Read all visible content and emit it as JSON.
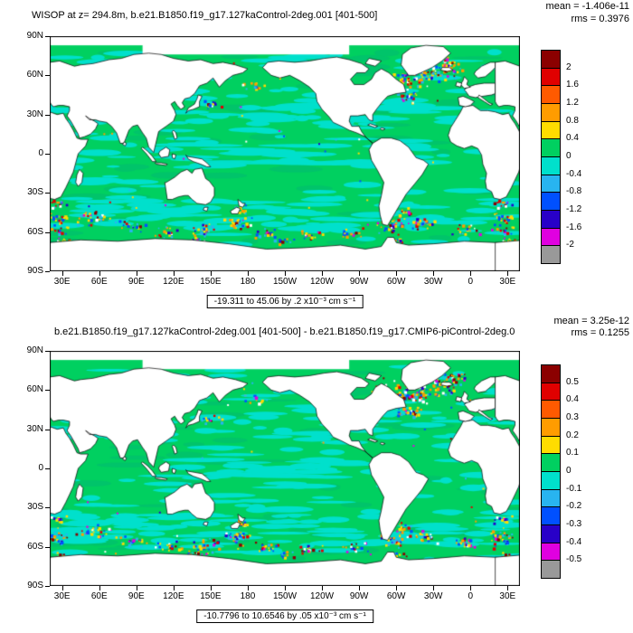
{
  "panels": [
    {
      "title": "WISOP at z= 294.8m, b.e21.B1850.f19_g17.127kaControl-2deg.001 [401-500]",
      "mean_label": "mean = -1.406e-11",
      "rms_label": "rms = 0.3976",
      "caption": "-19.311 to 45.06 by .2 x10⁻³ cm s⁻¹",
      "colorbar_ticks": [
        "2",
        "1.6",
        "1.2",
        "0.8",
        "0.4",
        "0",
        "-0.4",
        "-0.8",
        "-1.2",
        "-1.6",
        "-2"
      ]
    },
    {
      "title": "b.e21.B1850.f19_g17.127kaControl-2deg.001 [401-500] - b.e21.B1850.f19_g17.CMIP6-piControl-2deg.0",
      "mean_label": "mean = 3.25e-12",
      "rms_label": "rms = 0.1255",
      "caption": "-10.7796 to 10.6546 by .05 x10⁻³ cm s⁻¹",
      "colorbar_ticks": [
        "0.5",
        "0.4",
        "0.3",
        "0.2",
        "0.1",
        "0",
        "-0.1",
        "-0.2",
        "-0.3",
        "-0.4",
        "-0.5"
      ]
    }
  ],
  "axes": {
    "x_ticks": [
      "30E",
      "60E",
      "90E",
      "120E",
      "150E",
      "180",
      "150W",
      "120W",
      "90W",
      "60W",
      "30W",
      "0",
      "30E"
    ],
    "y_ticks": [
      "90N",
      "60N",
      "30N",
      "0",
      "30S",
      "60S",
      "90S"
    ]
  },
  "colorbar_colors": [
    "#8b0000",
    "#e00000",
    "#ff5a00",
    "#ff9c00",
    "#ffdc00",
    "#00d060",
    "#00e0cc",
    "#28b4f0",
    "#0050ff",
    "#2800c8",
    "#e000e0",
    "#999999"
  ],
  "map_colors": {
    "ocean_green": "#00d060",
    "ocean_green_alt": "#00c46a",
    "patch_cyan": "#00e0cc",
    "land_white": "#ffffff",
    "coastline_black": "#000000"
  },
  "chart_data": [
    {
      "type": "heatmap",
      "panel": "top",
      "title": "WISOP at z= 294.8m, b.e21.B1850.f19_g17.127kaControl-2deg.001 [401-500]",
      "mean": -1.406e-11,
      "rms": 0.3976,
      "data_min": -19.311,
      "data_max": 45.06,
      "contour_interval": 0.2,
      "units": "x10⁻³ cm s⁻¹",
      "colorbar_levels": [
        -2,
        -1.6,
        -1.2,
        -0.8,
        -0.4,
        0,
        0.4,
        0.8,
        1.2,
        1.6,
        2
      ],
      "x_tick_labels": [
        "30E",
        "60E",
        "90E",
        "120E",
        "150E",
        "180",
        "150W",
        "120W",
        "90W",
        "60W",
        "30W",
        "0",
        "30E"
      ],
      "y_tick_labels": [
        "90N",
        "60N",
        "30N",
        "0",
        "30S",
        "60S",
        "90S"
      ],
      "map_extent": "global cylindrical-equidistant, lon 30E eastward around to 30E, lat 90S to 90N",
      "legend_position": "right"
    },
    {
      "type": "heatmap",
      "panel": "bottom",
      "title": "b.e21.B1850.f19_g17.127kaControl-2deg.001 [401-500] - b.e21.B1850.f19_g17.CMIP6-piControl-2deg.0",
      "mean": 3.25e-12,
      "rms": 0.1255,
      "data_min": -10.7796,
      "data_max": 10.6546,
      "contour_interval": 0.05,
      "units": "x10⁻³ cm s⁻¹",
      "colorbar_levels": [
        -0.5,
        -0.4,
        -0.3,
        -0.2,
        -0.1,
        0,
        0.1,
        0.2,
        0.3,
        0.4,
        0.5
      ],
      "x_tick_labels": [
        "30E",
        "60E",
        "90E",
        "120E",
        "150E",
        "180",
        "150W",
        "120W",
        "90W",
        "60W",
        "30W",
        "0",
        "30E"
      ],
      "y_tick_labels": [
        "90N",
        "60N",
        "30N",
        "0",
        "30S",
        "60S",
        "90S"
      ],
      "map_extent": "global cylindrical-equidistant, lon 30E eastward around to 30E, lat 90S to 90N",
      "legend_position": "right"
    }
  ]
}
